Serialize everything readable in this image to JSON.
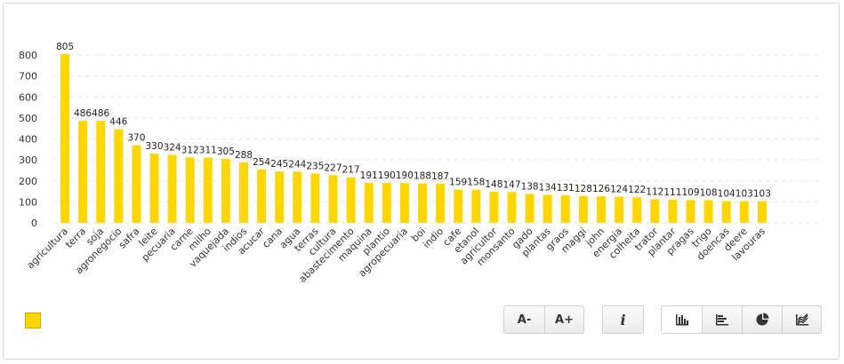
{
  "chart_data": {
    "type": "bar",
    "categories": [
      "agricultura",
      "terra",
      "soja",
      "agronegocio",
      "safra",
      "leite",
      "pecuaria",
      "carne",
      "milho",
      "vaquejada",
      "indios",
      "acucar",
      "cana",
      "agua",
      "terras",
      "cultura",
      "abastecimento",
      "maquina",
      "plantio",
      "agropecuaria",
      "boi",
      "indio",
      "cafe",
      "etanol",
      "agricultor",
      "monsanto",
      "gado",
      "plantas",
      "graos",
      "maggi",
      "john",
      "energia",
      "colheita",
      "trator",
      "plantar",
      "pragas",
      "trigo",
      "doencas",
      "deere",
      "lavouras"
    ],
    "values": [
      805,
      486,
      486,
      446,
      370,
      330,
      324,
      312,
      311,
      305,
      288,
      254,
      245,
      244,
      235,
      227,
      217,
      191,
      190,
      190,
      188,
      187,
      159,
      158,
      148,
      147,
      138,
      134,
      131,
      128,
      126,
      124,
      122,
      112,
      111,
      109,
      108,
      104,
      103,
      103
    ],
    "ylim": [
      0,
      800
    ],
    "yticks": [
      0,
      100,
      200,
      300,
      400,
      500,
      600,
      700,
      800
    ],
    "grid": true,
    "color": "#ffd700",
    "title": "",
    "xlabel": "",
    "ylabel": ""
  },
  "legend": {
    "swatch_color": "#ffd700"
  },
  "controls": {
    "font_decrease": "A-",
    "font_increase": "A+",
    "info": "i",
    "chart_types": [
      "bar-chart-icon",
      "horizontal-bar-chart-icon",
      "pie-chart-icon",
      "area-chart-icon"
    ]
  }
}
